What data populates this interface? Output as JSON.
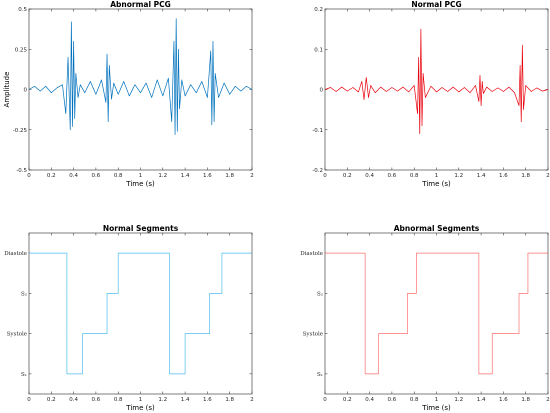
{
  "chart_data": [
    {
      "type": "line",
      "title": "Abnormal PCG",
      "xlabel": "Time (s)",
      "ylabel": "Amplitude",
      "xlim": [
        0,
        2
      ],
      "ylim": [
        -0.5,
        0.5
      ],
      "xticks": [
        "0",
        "0.2",
        "0.4",
        "0.6",
        "0.8",
        "1",
        "1.2",
        "1.4",
        "1.6",
        "1.8",
        "2"
      ],
      "yticks": [
        "-0.5",
        "-0.25",
        "0",
        "0.25",
        "0.5"
      ],
      "color": "#0072BD",
      "series": [
        {
          "x": [
            0,
            0.05,
            0.1,
            0.15,
            0.2,
            0.25,
            0.3,
            0.33,
            0.35,
            0.37,
            0.38,
            0.39,
            0.4,
            0.41,
            0.42,
            0.44,
            0.46,
            0.5,
            0.55,
            0.6,
            0.65,
            0.69,
            0.7,
            0.71,
            0.72,
            0.74,
            0.76,
            0.8,
            0.85,
            0.9,
            0.95,
            1.0,
            1.05,
            1.1,
            1.15,
            1.2,
            1.25,
            1.28,
            1.3,
            1.31,
            1.32,
            1.33,
            1.34,
            1.35,
            1.37,
            1.4,
            1.45,
            1.5,
            1.55,
            1.6,
            1.63,
            1.64,
            1.65,
            1.66,
            1.67,
            1.7,
            1.75,
            1.8,
            1.85,
            1.9,
            1.95,
            2.0
          ],
          "y": [
            0,
            0.02,
            -0.01,
            0.02,
            -0.02,
            0.01,
            0.03,
            -0.15,
            0.2,
            -0.25,
            0.42,
            -0.23,
            0.3,
            -0.18,
            0.1,
            -0.05,
            0.03,
            -0.02,
            0.05,
            -0.03,
            0.06,
            -0.08,
            0.22,
            -0.2,
            0.15,
            -0.06,
            0.04,
            -0.03,
            0.05,
            -0.04,
            0.03,
            -0.02,
            0.04,
            -0.05,
            0.06,
            -0.04,
            0.07,
            -0.2,
            0.3,
            -0.28,
            0.44,
            -0.26,
            0.25,
            -0.12,
            0.06,
            -0.04,
            0.03,
            -0.02,
            0.05,
            -0.05,
            0.24,
            -0.22,
            0.3,
            -0.2,
            0.1,
            -0.05,
            0.04,
            -0.03,
            0.02,
            -0.01,
            0.02,
            0
          ]
        }
      ]
    },
    {
      "type": "line",
      "title": "Normal PCG",
      "xlabel": "Time (s)",
      "ylabel": "",
      "xlim": [
        0,
        2
      ],
      "ylim": [
        -0.2,
        0.2
      ],
      "xticks": [
        "0",
        "0.2",
        "0.4",
        "0.6",
        "0.8",
        "1",
        "1.2",
        "1.4",
        "1.6",
        "1.8",
        "2"
      ],
      "yticks": [
        "-0.2",
        "-0.1",
        "0",
        "0.1",
        "0.2"
      ],
      "color": "#E8000B",
      "series": [
        {
          "x": [
            0,
            0.05,
            0.1,
            0.15,
            0.2,
            0.25,
            0.3,
            0.33,
            0.35,
            0.37,
            0.39,
            0.41,
            0.45,
            0.5,
            0.55,
            0.6,
            0.65,
            0.7,
            0.75,
            0.8,
            0.83,
            0.84,
            0.85,
            0.86,
            0.87,
            0.88,
            0.9,
            0.95,
            1.0,
            1.05,
            1.1,
            1.15,
            1.2,
            1.25,
            1.3,
            1.35,
            1.38,
            1.39,
            1.4,
            1.41,
            1.42,
            1.45,
            1.5,
            1.55,
            1.6,
            1.65,
            1.7,
            1.74,
            1.75,
            1.76,
            1.77,
            1.78,
            1.8,
            1.85,
            1.9,
            1.95,
            2.0
          ],
          "y": [
            0,
            0.005,
            -0.005,
            0.006,
            -0.004,
            0.005,
            -0.006,
            0.02,
            -0.025,
            0.03,
            -0.02,
            0.01,
            -0.008,
            0.006,
            -0.005,
            0.005,
            -0.004,
            0.006,
            -0.006,
            0.01,
            -0.06,
            0.08,
            -0.11,
            0.15,
            -0.09,
            0.04,
            -0.02,
            0.008,
            -0.006,
            0.005,
            -0.005,
            0.006,
            -0.006,
            0.005,
            -0.008,
            0.01,
            -0.03,
            0.035,
            -0.04,
            0.02,
            -0.01,
            0.006,
            -0.005,
            0.004,
            -0.005,
            0.006,
            -0.008,
            -0.04,
            0.06,
            -0.08,
            0.11,
            -0.05,
            0.01,
            -0.005,
            0.004,
            -0.004,
            0
          ]
        }
      ]
    },
    {
      "type": "line",
      "title": "Normal Segments",
      "xlabel": "Time (s)",
      "ylabel": "",
      "xlim": [
        0,
        2
      ],
      "ylim": [
        0.5,
        4.5
      ],
      "xticks": [
        "0",
        "0.2",
        "0.4",
        "0.6",
        "0.8",
        "1",
        "1.2",
        "1.4",
        "1.6",
        "1.8",
        "2"
      ],
      "ytick_labels": [
        {
          "value": 4,
          "text": "Diastole"
        },
        {
          "value": 3,
          "text": "S₂"
        },
        {
          "value": 2,
          "text": "Systole"
        },
        {
          "value": 1,
          "text": "S₁"
        }
      ],
      "color": "#4DBEEE",
      "series": [
        {
          "x": [
            0,
            0.34,
            0.34,
            0.48,
            0.48,
            0.7,
            0.7,
            0.8,
            0.8,
            1.26,
            1.26,
            1.4,
            1.4,
            1.62,
            1.62,
            1.73,
            1.73,
            2.0
          ],
          "y": [
            4,
            4,
            1,
            1,
            2,
            2,
            3,
            3,
            4,
            4,
            1,
            1,
            2,
            2,
            3,
            3,
            4,
            4
          ]
        }
      ]
    },
    {
      "type": "line",
      "title": "Abnormal Segments",
      "xlabel": "Time (s)",
      "ylabel": "",
      "xlim": [
        0,
        2
      ],
      "ylim": [
        0.5,
        4.5
      ],
      "xticks": [
        "0",
        "0.2",
        "0.4",
        "0.6",
        "0.8",
        "1",
        "1.2",
        "1.4",
        "1.6",
        "1.8",
        "2"
      ],
      "ytick_labels": [
        {
          "value": 4,
          "text": "Diastole"
        },
        {
          "value": 3,
          "text": "S₂"
        },
        {
          "value": 2,
          "text": "Systole"
        },
        {
          "value": 1,
          "text": "S₁"
        }
      ],
      "color": "#FF6F6F",
      "series": [
        {
          "x": [
            0,
            0.36,
            0.36,
            0.48,
            0.48,
            0.74,
            0.74,
            0.82,
            0.82,
            1.38,
            1.38,
            1.5,
            1.5,
            1.74,
            1.74,
            1.82,
            1.82,
            2.0
          ],
          "y": [
            4,
            4,
            1,
            1,
            2,
            2,
            3,
            3,
            4,
            4,
            1,
            1,
            2,
            2,
            3,
            3,
            4,
            4
          ]
        }
      ]
    }
  ]
}
